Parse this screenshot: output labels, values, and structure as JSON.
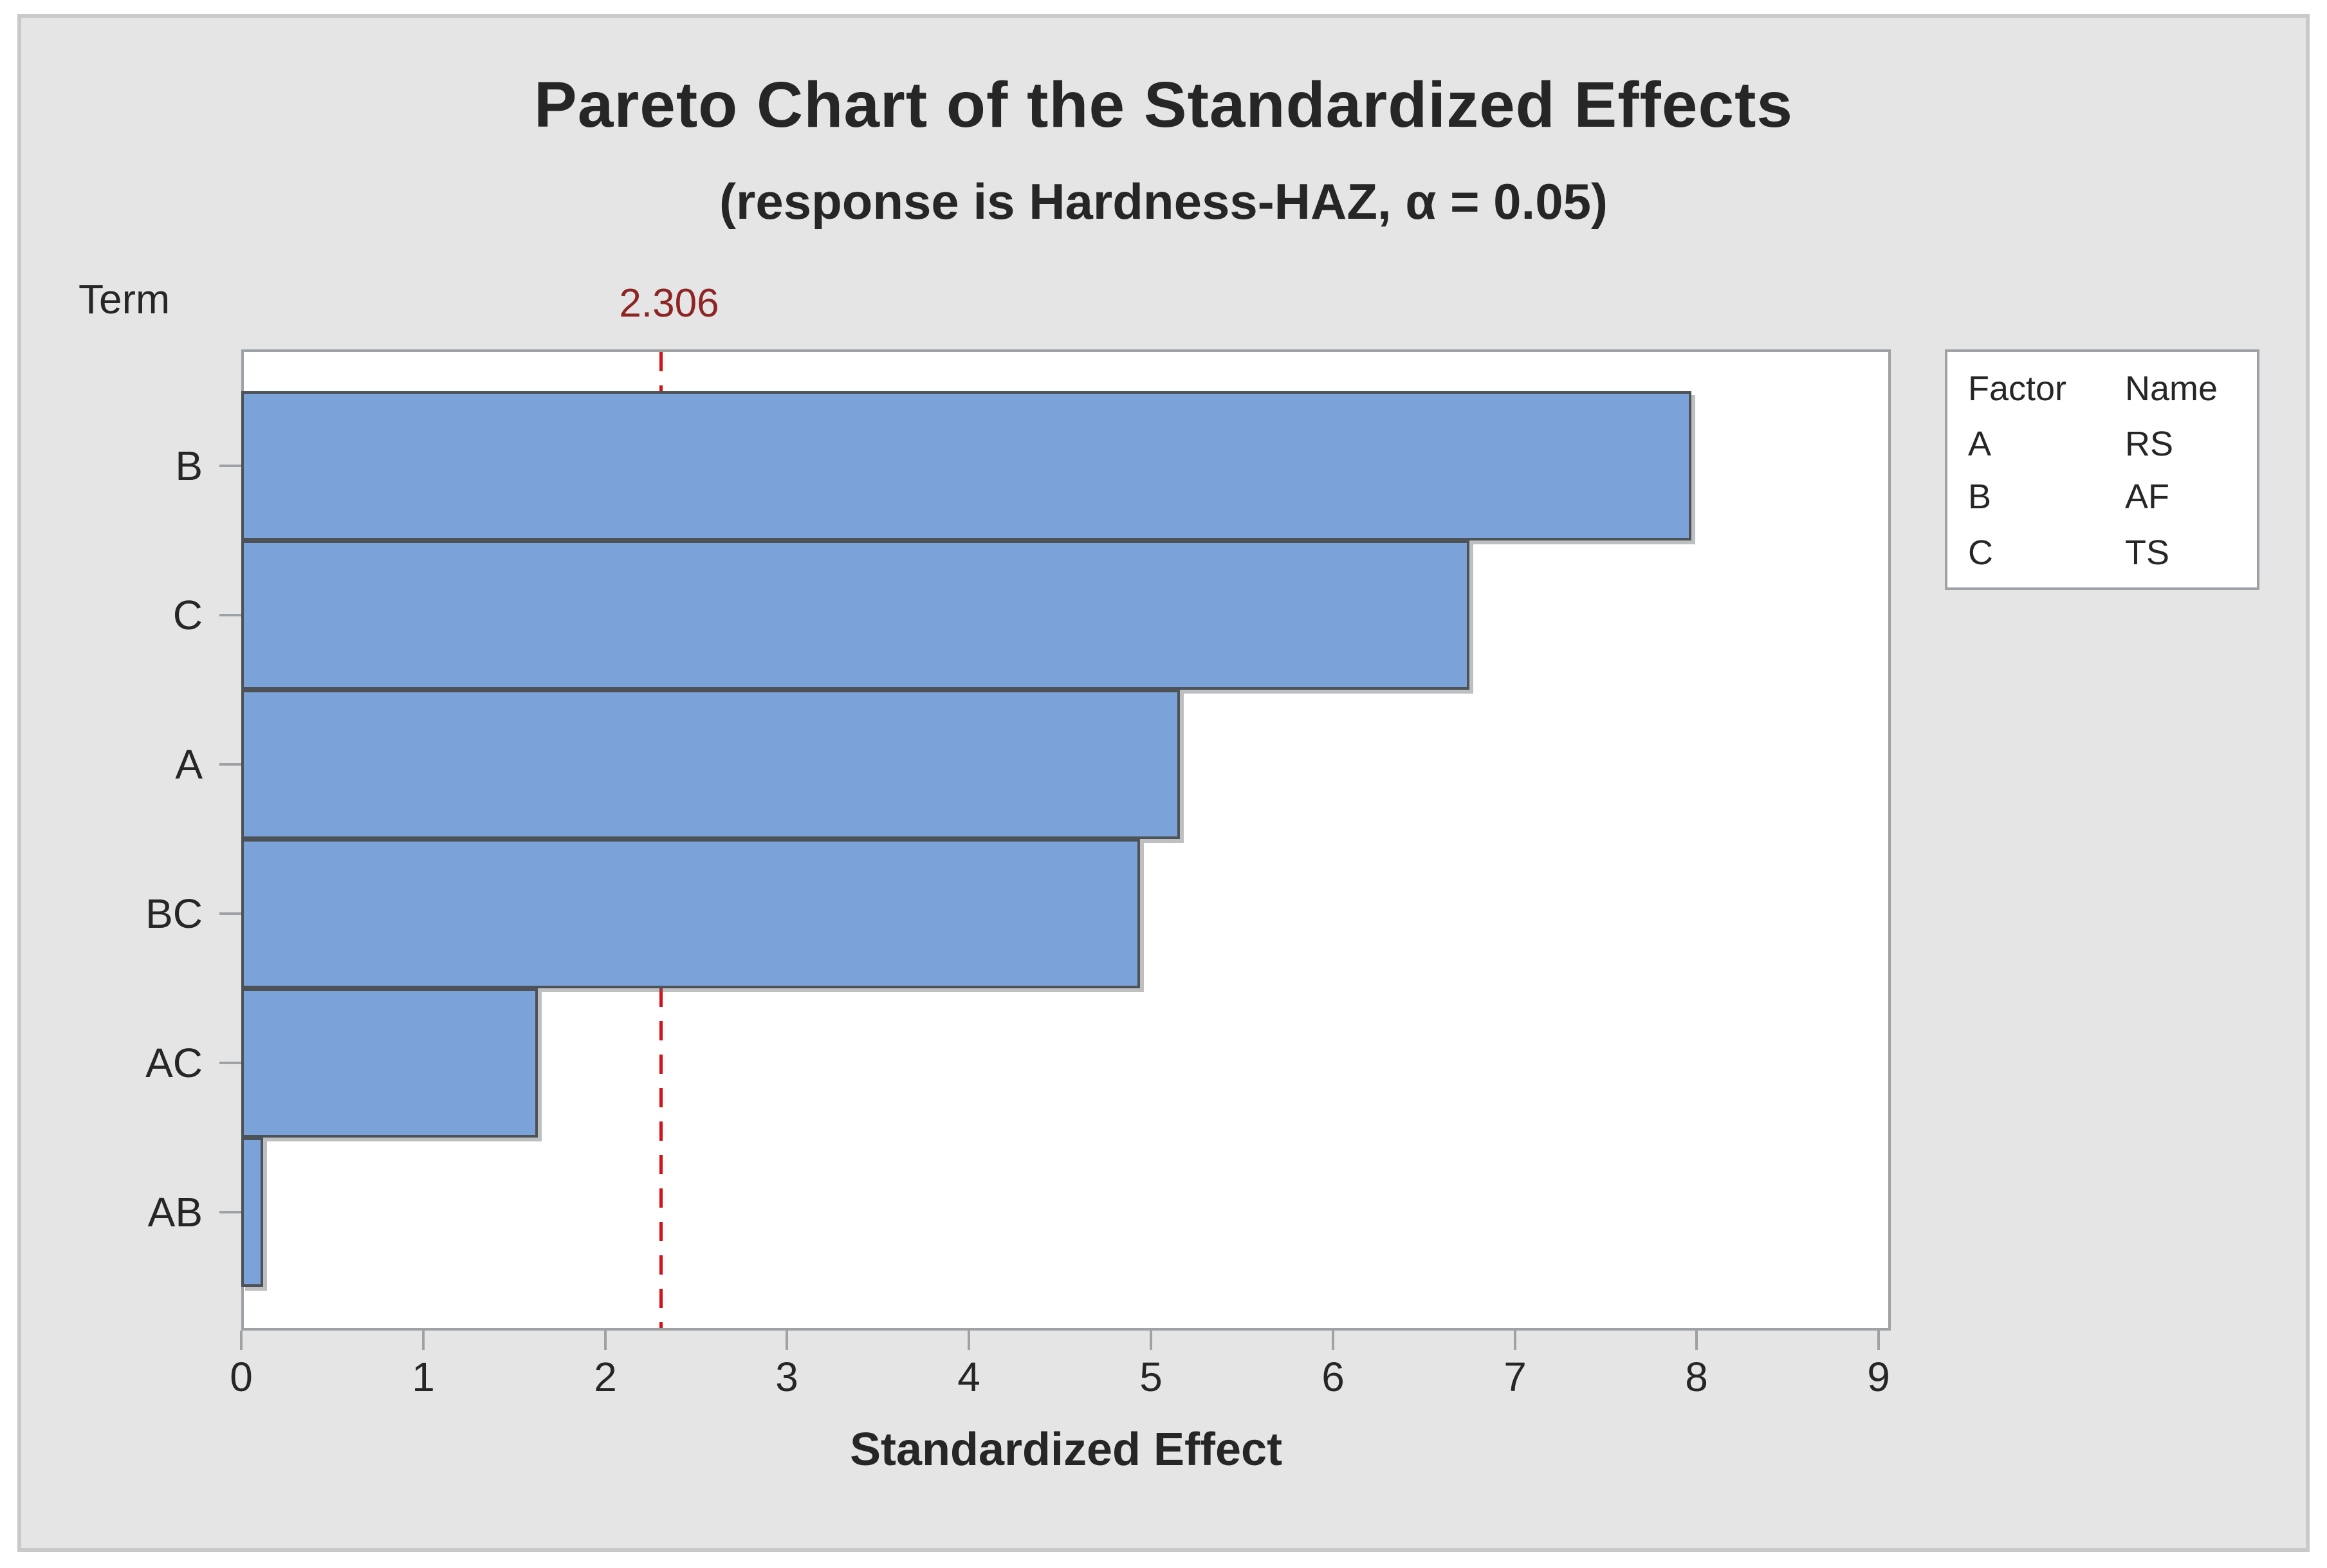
{
  "chart_data": {
    "type": "bar",
    "orientation": "horizontal",
    "title": "Pareto Chart of the Standardized Effects",
    "subtitle": "(response is Hardness-HAZ, α = 0.05)",
    "xlabel": "Standardized Effect",
    "ylabel": "Term",
    "categories": [
      "B",
      "C",
      "A",
      "BC",
      "AC",
      "AB"
    ],
    "values": [
      7.97,
      6.75,
      5.16,
      4.94,
      1.63,
      0.12
    ],
    "x_ticks": [
      0,
      1,
      2,
      3,
      4,
      5,
      6,
      7,
      8,
      9
    ],
    "xlim": [
      0,
      9.07
    ],
    "grid": false,
    "reference_line": {
      "value": 2.306,
      "label": "2.306"
    },
    "legend": {
      "position": "right",
      "headers": [
        "Factor",
        "Name"
      ],
      "rows": [
        {
          "factor": "A",
          "name": "RS"
        },
        {
          "factor": "B",
          "name": "AF"
        },
        {
          "factor": "C",
          "name": "TS"
        }
      ]
    },
    "colors": {
      "bar_fill": "#7CA3D9",
      "bar_edge": "#4D5257",
      "reference_line": "#D31317",
      "reference_label": "#8D2524",
      "frame": "#9EA2A5",
      "panel_background": "#E5E5E5",
      "panel_border": "#C9C9C9",
      "plot_background": "#FFFFFF",
      "text": "#262626"
    }
  }
}
